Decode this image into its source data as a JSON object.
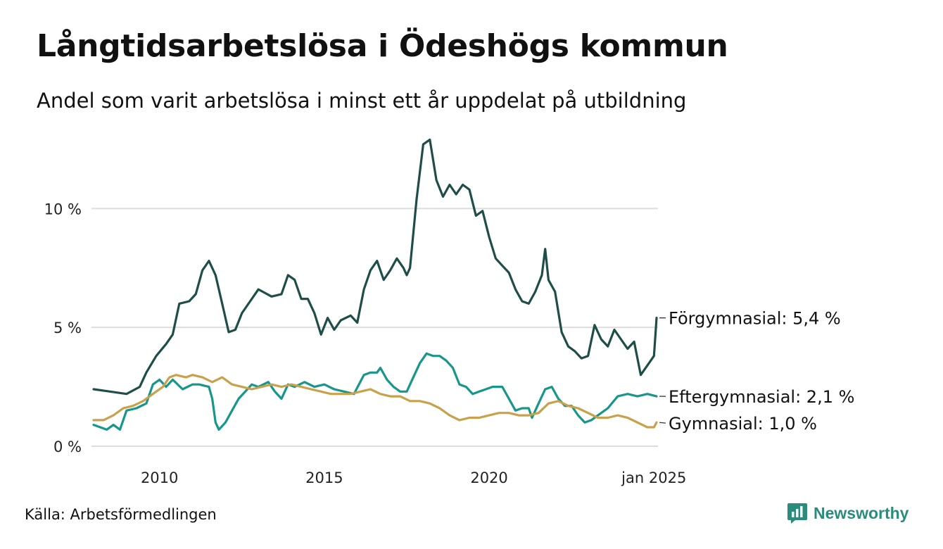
{
  "title": "Långtidsarbetslösa i Ödeshögs kommun",
  "subtitle": "Andel som varit arbetslösa i minst ett år uppdelat på utbildning",
  "source": "Källa: Arbetsförmedlingen",
  "brand": {
    "name": "Newsworthy",
    "icon": "newsworthy-logo-icon",
    "color": "#2a8c7a"
  },
  "chart_data": {
    "type": "line",
    "title": "Långtidsarbetslösa i Ödeshögs kommun",
    "xlabel": "",
    "ylabel": "",
    "xlim": [
      2008.0,
      2025.08
    ],
    "ylim": [
      0,
      13
    ],
    "grid": true,
    "y_ticks": [
      {
        "value": 0,
        "label": "0 %"
      },
      {
        "value": 5,
        "label": "5 %"
      },
      {
        "value": 10,
        "label": "10 %"
      }
    ],
    "x_ticks": [
      {
        "value": 2010,
        "label": "2010"
      },
      {
        "value": 2015,
        "label": "2015"
      },
      {
        "value": 2020,
        "label": "2020"
      },
      {
        "value": 2025,
        "label": "jan 2025"
      }
    ],
    "series": [
      {
        "name": "Förgymnasial",
        "end_label": "Förgymnasial: 5,4 %",
        "color": "#1f4d47",
        "points": [
          [
            2008.0,
            2.4
          ],
          [
            2008.5,
            2.3
          ],
          [
            2009.0,
            2.2
          ],
          [
            2009.4,
            2.5
          ],
          [
            2009.6,
            3.1
          ],
          [
            2009.9,
            3.8
          ],
          [
            2010.2,
            4.3
          ],
          [
            2010.4,
            4.7
          ],
          [
            2010.6,
            6.0
          ],
          [
            2010.9,
            6.1
          ],
          [
            2011.1,
            6.4
          ],
          [
            2011.3,
            7.4
          ],
          [
            2011.5,
            7.8
          ],
          [
            2011.7,
            7.2
          ],
          [
            2011.9,
            6.0
          ],
          [
            2012.1,
            4.8
          ],
          [
            2012.3,
            4.9
          ],
          [
            2012.5,
            5.6
          ],
          [
            2012.8,
            6.2
          ],
          [
            2013.0,
            6.6
          ],
          [
            2013.4,
            6.3
          ],
          [
            2013.7,
            6.4
          ],
          [
            2013.9,
            7.2
          ],
          [
            2014.1,
            7.0
          ],
          [
            2014.3,
            6.2
          ],
          [
            2014.5,
            6.2
          ],
          [
            2014.7,
            5.6
          ],
          [
            2014.9,
            4.7
          ],
          [
            2015.1,
            5.4
          ],
          [
            2015.3,
            4.9
          ],
          [
            2015.5,
            5.3
          ],
          [
            2015.8,
            5.5
          ],
          [
            2016.0,
            5.2
          ],
          [
            2016.2,
            6.6
          ],
          [
            2016.4,
            7.4
          ],
          [
            2016.6,
            7.8
          ],
          [
            2016.8,
            7.0
          ],
          [
            2017.0,
            7.4
          ],
          [
            2017.2,
            7.9
          ],
          [
            2017.4,
            7.5
          ],
          [
            2017.5,
            7.2
          ],
          [
            2017.6,
            7.5
          ],
          [
            2017.8,
            10.4
          ],
          [
            2018.0,
            12.7
          ],
          [
            2018.2,
            12.9
          ],
          [
            2018.4,
            11.2
          ],
          [
            2018.6,
            10.5
          ],
          [
            2018.8,
            11.0
          ],
          [
            2019.0,
            10.6
          ],
          [
            2019.2,
            11.0
          ],
          [
            2019.4,
            10.8
          ],
          [
            2019.6,
            9.7
          ],
          [
            2019.8,
            9.9
          ],
          [
            2020.0,
            8.8
          ],
          [
            2020.2,
            7.9
          ],
          [
            2020.4,
            7.6
          ],
          [
            2020.6,
            7.3
          ],
          [
            2020.8,
            6.6
          ],
          [
            2021.0,
            6.1
          ],
          [
            2021.2,
            6.0
          ],
          [
            2021.4,
            6.5
          ],
          [
            2021.6,
            7.2
          ],
          [
            2021.7,
            8.3
          ],
          [
            2021.8,
            7.0
          ],
          [
            2022.0,
            6.5
          ],
          [
            2022.2,
            4.8
          ],
          [
            2022.4,
            4.2
          ],
          [
            2022.6,
            4.0
          ],
          [
            2022.8,
            3.7
          ],
          [
            2023.0,
            3.8
          ],
          [
            2023.2,
            5.1
          ],
          [
            2023.4,
            4.5
          ],
          [
            2023.6,
            4.2
          ],
          [
            2023.8,
            4.9
          ],
          [
            2024.0,
            4.5
          ],
          [
            2024.2,
            4.1
          ],
          [
            2024.4,
            4.4
          ],
          [
            2024.6,
            3.0
          ],
          [
            2024.8,
            3.4
          ],
          [
            2025.0,
            3.8
          ],
          [
            2025.08,
            5.4
          ]
        ]
      },
      {
        "name": "Eftergymnasial",
        "end_label": "Eftergymnasial: 2,1 %",
        "color": "#17968a",
        "points": [
          [
            2008.0,
            0.9
          ],
          [
            2008.2,
            0.8
          ],
          [
            2008.4,
            0.7
          ],
          [
            2008.6,
            0.9
          ],
          [
            2008.8,
            0.7
          ],
          [
            2009.0,
            1.5
          ],
          [
            2009.3,
            1.6
          ],
          [
            2009.6,
            1.8
          ],
          [
            2009.8,
            2.6
          ],
          [
            2010.0,
            2.8
          ],
          [
            2010.2,
            2.5
          ],
          [
            2010.4,
            2.8
          ],
          [
            2010.7,
            2.4
          ],
          [
            2011.0,
            2.6
          ],
          [
            2011.2,
            2.6
          ],
          [
            2011.5,
            2.5
          ],
          [
            2011.6,
            2.0
          ],
          [
            2011.7,
            1.0
          ],
          [
            2011.8,
            0.7
          ],
          [
            2012.0,
            1.0
          ],
          [
            2012.2,
            1.5
          ],
          [
            2012.4,
            2.0
          ],
          [
            2012.6,
            2.3
          ],
          [
            2012.8,
            2.6
          ],
          [
            2013.0,
            2.5
          ],
          [
            2013.3,
            2.7
          ],
          [
            2013.5,
            2.3
          ],
          [
            2013.7,
            2.0
          ],
          [
            2013.9,
            2.6
          ],
          [
            2014.1,
            2.5
          ],
          [
            2014.4,
            2.7
          ],
          [
            2014.7,
            2.5
          ],
          [
            2015.0,
            2.6
          ],
          [
            2015.3,
            2.4
          ],
          [
            2015.6,
            2.3
          ],
          [
            2015.9,
            2.2
          ],
          [
            2016.2,
            3.0
          ],
          [
            2016.4,
            3.1
          ],
          [
            2016.6,
            3.1
          ],
          [
            2016.7,
            3.3
          ],
          [
            2016.9,
            2.8
          ],
          [
            2017.1,
            2.5
          ],
          [
            2017.3,
            2.3
          ],
          [
            2017.5,
            2.3
          ],
          [
            2017.7,
            2.9
          ],
          [
            2017.9,
            3.5
          ],
          [
            2018.1,
            3.9
          ],
          [
            2018.3,
            3.8
          ],
          [
            2018.5,
            3.8
          ],
          [
            2018.7,
            3.6
          ],
          [
            2018.9,
            3.3
          ],
          [
            2019.1,
            2.6
          ],
          [
            2019.3,
            2.5
          ],
          [
            2019.5,
            2.2
          ],
          [
            2019.7,
            2.3
          ],
          [
            2019.9,
            2.4
          ],
          [
            2020.1,
            2.5
          ],
          [
            2020.4,
            2.5
          ],
          [
            2020.6,
            2.0
          ],
          [
            2020.8,
            1.5
          ],
          [
            2021.0,
            1.6
          ],
          [
            2021.2,
            1.6
          ],
          [
            2021.3,
            1.2
          ],
          [
            2021.5,
            1.8
          ],
          [
            2021.7,
            2.4
          ],
          [
            2021.9,
            2.5
          ],
          [
            2022.1,
            2.0
          ],
          [
            2022.3,
            1.7
          ],
          [
            2022.5,
            1.7
          ],
          [
            2022.7,
            1.3
          ],
          [
            2022.9,
            1.0
          ],
          [
            2023.1,
            1.1
          ],
          [
            2023.3,
            1.3
          ],
          [
            2023.6,
            1.6
          ],
          [
            2023.9,
            2.1
          ],
          [
            2024.2,
            2.2
          ],
          [
            2024.5,
            2.1
          ],
          [
            2024.8,
            2.2
          ],
          [
            2025.08,
            2.1
          ]
        ]
      },
      {
        "name": "Gymnasial",
        "end_label": "Gymnasial: 1,0 %",
        "color": "#c9a14a",
        "points": [
          [
            2008.0,
            1.1
          ],
          [
            2008.3,
            1.1
          ],
          [
            2008.6,
            1.3
          ],
          [
            2008.9,
            1.6
          ],
          [
            2009.2,
            1.7
          ],
          [
            2009.5,
            1.9
          ],
          [
            2009.8,
            2.2
          ],
          [
            2010.1,
            2.5
          ],
          [
            2010.3,
            2.9
          ],
          [
            2010.5,
            3.0
          ],
          [
            2010.8,
            2.9
          ],
          [
            2011.0,
            3.0
          ],
          [
            2011.3,
            2.9
          ],
          [
            2011.6,
            2.7
          ],
          [
            2011.9,
            2.9
          ],
          [
            2012.2,
            2.6
          ],
          [
            2012.5,
            2.5
          ],
          [
            2012.8,
            2.4
          ],
          [
            2013.1,
            2.5
          ],
          [
            2013.4,
            2.6
          ],
          [
            2013.7,
            2.5
          ],
          [
            2014.0,
            2.6
          ],
          [
            2014.3,
            2.5
          ],
          [
            2014.6,
            2.4
          ],
          [
            2014.9,
            2.3
          ],
          [
            2015.2,
            2.2
          ],
          [
            2015.5,
            2.2
          ],
          [
            2015.8,
            2.2
          ],
          [
            2016.1,
            2.3
          ],
          [
            2016.4,
            2.4
          ],
          [
            2016.7,
            2.2
          ],
          [
            2017.0,
            2.1
          ],
          [
            2017.3,
            2.1
          ],
          [
            2017.6,
            1.9
          ],
          [
            2017.9,
            1.9
          ],
          [
            2018.2,
            1.8
          ],
          [
            2018.5,
            1.6
          ],
          [
            2018.8,
            1.3
          ],
          [
            2019.1,
            1.1
          ],
          [
            2019.4,
            1.2
          ],
          [
            2019.7,
            1.2
          ],
          [
            2020.0,
            1.3
          ],
          [
            2020.3,
            1.4
          ],
          [
            2020.6,
            1.4
          ],
          [
            2020.9,
            1.3
          ],
          [
            2021.2,
            1.3
          ],
          [
            2021.5,
            1.4
          ],
          [
            2021.8,
            1.8
          ],
          [
            2022.1,
            1.9
          ],
          [
            2022.4,
            1.7
          ],
          [
            2022.7,
            1.6
          ],
          [
            2023.0,
            1.4
          ],
          [
            2023.3,
            1.2
          ],
          [
            2023.6,
            1.2
          ],
          [
            2023.9,
            1.3
          ],
          [
            2024.2,
            1.2
          ],
          [
            2024.5,
            1.0
          ],
          [
            2024.8,
            0.8
          ],
          [
            2025.0,
            0.8
          ],
          [
            2025.08,
            1.0
          ]
        ]
      }
    ]
  }
}
